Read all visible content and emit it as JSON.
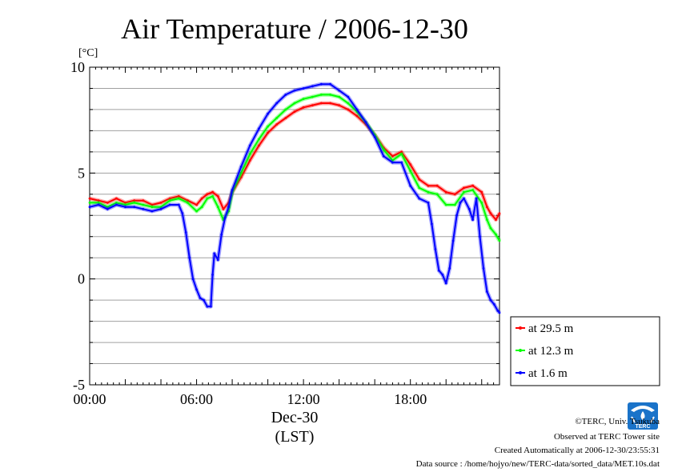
{
  "chart_data": {
    "type": "line",
    "title": "Air Temperature / 2006-12-30",
    "ylabel": "[°C]",
    "ylim": [
      -5,
      10
    ],
    "yticks": [
      10,
      5,
      0,
      -5
    ],
    "xlim": [
      0,
      23
    ],
    "xticks": [
      {
        "x": 0,
        "label": "00:00"
      },
      {
        "x": 6,
        "label": "06:00"
      },
      {
        "x": 12,
        "label": "12:00"
      },
      {
        "x": 18,
        "label": "18:00"
      }
    ],
    "date_label": "Dec-30",
    "xlabel": "(LST)",
    "grid": true,
    "legend_position": "lower-right-outside",
    "series": [
      {
        "name": "at 29.5 m",
        "color": "#ff0000",
        "points": [
          [
            0,
            3.8
          ],
          [
            0.5,
            3.7
          ],
          [
            1,
            3.6
          ],
          [
            1.5,
            3.8
          ],
          [
            2,
            3.6
          ],
          [
            2.5,
            3.7
          ],
          [
            3,
            3.7
          ],
          [
            3.5,
            3.5
          ],
          [
            4,
            3.6
          ],
          [
            4.5,
            3.8
          ],
          [
            5,
            3.9
          ],
          [
            5.5,
            3.7
          ],
          [
            6,
            3.5
          ],
          [
            6.3,
            3.8
          ],
          [
            6.6,
            4.0
          ],
          [
            6.9,
            4.1
          ],
          [
            7.2,
            3.9
          ],
          [
            7.5,
            3.3
          ],
          [
            7.8,
            3.6
          ],
          [
            8,
            4.1
          ],
          [
            8.5,
            4.8
          ],
          [
            9,
            5.6
          ],
          [
            9.5,
            6.3
          ],
          [
            10,
            6.9
          ],
          [
            10.5,
            7.3
          ],
          [
            11,
            7.6
          ],
          [
            11.5,
            7.9
          ],
          [
            12,
            8.1
          ],
          [
            12.5,
            8.2
          ],
          [
            13,
            8.3
          ],
          [
            13.5,
            8.3
          ],
          [
            14,
            8.2
          ],
          [
            14.5,
            8.0
          ],
          [
            15,
            7.7
          ],
          [
            15.5,
            7.3
          ],
          [
            16,
            6.8
          ],
          [
            16.5,
            6.2
          ],
          [
            17,
            5.8
          ],
          [
            17.5,
            6.0
          ],
          [
            18,
            5.4
          ],
          [
            18.5,
            4.7
          ],
          [
            19,
            4.4
          ],
          [
            19.5,
            4.4
          ],
          [
            20,
            4.1
          ],
          [
            20.5,
            4.0
          ],
          [
            21,
            4.3
          ],
          [
            21.5,
            4.4
          ],
          [
            22,
            4.1
          ],
          [
            22.3,
            3.4
          ],
          [
            22.5,
            3.1
          ],
          [
            22.8,
            2.8
          ],
          [
            23,
            3.1
          ]
        ]
      },
      {
        "name": "at 12.3 m",
        "color": "#00ff00",
        "points": [
          [
            0,
            3.6
          ],
          [
            0.5,
            3.6
          ],
          [
            1,
            3.4
          ],
          [
            1.5,
            3.6
          ],
          [
            2,
            3.5
          ],
          [
            2.5,
            3.6
          ],
          [
            3,
            3.5
          ],
          [
            3.5,
            3.4
          ],
          [
            4,
            3.4
          ],
          [
            4.5,
            3.7
          ],
          [
            5,
            3.8
          ],
          [
            5.5,
            3.6
          ],
          [
            6,
            3.2
          ],
          [
            6.3,
            3.4
          ],
          [
            6.6,
            3.8
          ],
          [
            6.9,
            3.9
          ],
          [
            7.2,
            3.4
          ],
          [
            7.5,
            2.8
          ],
          [
            7.8,
            3.2
          ],
          [
            8,
            4.1
          ],
          [
            8.5,
            5.0
          ],
          [
            9,
            5.9
          ],
          [
            9.5,
            6.6
          ],
          [
            10,
            7.2
          ],
          [
            10.5,
            7.6
          ],
          [
            11,
            8.0
          ],
          [
            11.5,
            8.3
          ],
          [
            12,
            8.5
          ],
          [
            12.5,
            8.6
          ],
          [
            13,
            8.7
          ],
          [
            13.5,
            8.7
          ],
          [
            14,
            8.6
          ],
          [
            14.5,
            8.3
          ],
          [
            15,
            7.9
          ],
          [
            15.5,
            7.4
          ],
          [
            16,
            6.8
          ],
          [
            16.5,
            6.1
          ],
          [
            17,
            5.6
          ],
          [
            17.5,
            5.9
          ],
          [
            18,
            5.1
          ],
          [
            18.5,
            4.3
          ],
          [
            19,
            4.1
          ],
          [
            19.5,
            4.0
          ],
          [
            20,
            3.5
          ],
          [
            20.5,
            3.5
          ],
          [
            21,
            4.1
          ],
          [
            21.5,
            4.2
          ],
          [
            22,
            3.6
          ],
          [
            22.3,
            2.8
          ],
          [
            22.5,
            2.4
          ],
          [
            22.8,
            2.1
          ],
          [
            23,
            1.8
          ]
        ]
      },
      {
        "name": "at 1.6 m",
        "color": "#0000ff",
        "points": [
          [
            0,
            3.4
          ],
          [
            0.5,
            3.5
          ],
          [
            1,
            3.3
          ],
          [
            1.5,
            3.5
          ],
          [
            2,
            3.4
          ],
          [
            2.5,
            3.4
          ],
          [
            3,
            3.3
          ],
          [
            3.5,
            3.2
          ],
          [
            4,
            3.3
          ],
          [
            4.5,
            3.5
          ],
          [
            5,
            3.5
          ],
          [
            5.2,
            3.1
          ],
          [
            5.4,
            2.2
          ],
          [
            5.6,
            1.0
          ],
          [
            5.8,
            0.0
          ],
          [
            6.0,
            -0.5
          ],
          [
            6.2,
            -0.9
          ],
          [
            6.4,
            -1.0
          ],
          [
            6.6,
            -1.3
          ],
          [
            6.8,
            -1.3
          ],
          [
            6.9,
            0.2
          ],
          [
            7.0,
            1.2
          ],
          [
            7.2,
            0.9
          ],
          [
            7.4,
            2.1
          ],
          [
            7.6,
            2.9
          ],
          [
            7.8,
            3.4
          ],
          [
            8,
            4.2
          ],
          [
            8.5,
            5.3
          ],
          [
            9,
            6.3
          ],
          [
            9.5,
            7.1
          ],
          [
            10,
            7.8
          ],
          [
            10.5,
            8.3
          ],
          [
            11,
            8.7
          ],
          [
            11.5,
            8.9
          ],
          [
            12,
            9.0
          ],
          [
            12.5,
            9.1
          ],
          [
            13,
            9.2
          ],
          [
            13.5,
            9.2
          ],
          [
            14,
            8.9
          ],
          [
            14.5,
            8.6
          ],
          [
            15,
            8.0
          ],
          [
            15.5,
            7.4
          ],
          [
            16,
            6.7
          ],
          [
            16.5,
            5.8
          ],
          [
            17,
            5.5
          ],
          [
            17.5,
            5.5
          ],
          [
            18,
            4.4
          ],
          [
            18.5,
            3.8
          ],
          [
            19,
            3.6
          ],
          [
            19.2,
            2.6
          ],
          [
            19.4,
            1.4
          ],
          [
            19.6,
            0.4
          ],
          [
            19.8,
            0.2
          ],
          [
            20,
            -0.2
          ],
          [
            20.2,
            0.5
          ],
          [
            20.4,
            1.8
          ],
          [
            20.6,
            3.0
          ],
          [
            20.8,
            3.6
          ],
          [
            21,
            3.8
          ],
          [
            21.3,
            3.3
          ],
          [
            21.5,
            2.8
          ],
          [
            21.7,
            3.8
          ],
          [
            21.9,
            2.0
          ],
          [
            22.1,
            0.5
          ],
          [
            22.3,
            -0.6
          ],
          [
            22.5,
            -1.0
          ],
          [
            22.7,
            -1.2
          ],
          [
            22.9,
            -1.5
          ],
          [
            23,
            -1.6
          ]
        ]
      }
    ]
  },
  "credits": {
    "copyright": "©TERC, Univ. Tsukuba",
    "observed": "Observed at TERC Tower site",
    "created": "Created Automatically at 2006-12-30/23:55:31",
    "source": "Data source : /home/hojyo/new/TERC-data/sorted_data/MET.10s.dat",
    "logo_text": "TERC"
  }
}
